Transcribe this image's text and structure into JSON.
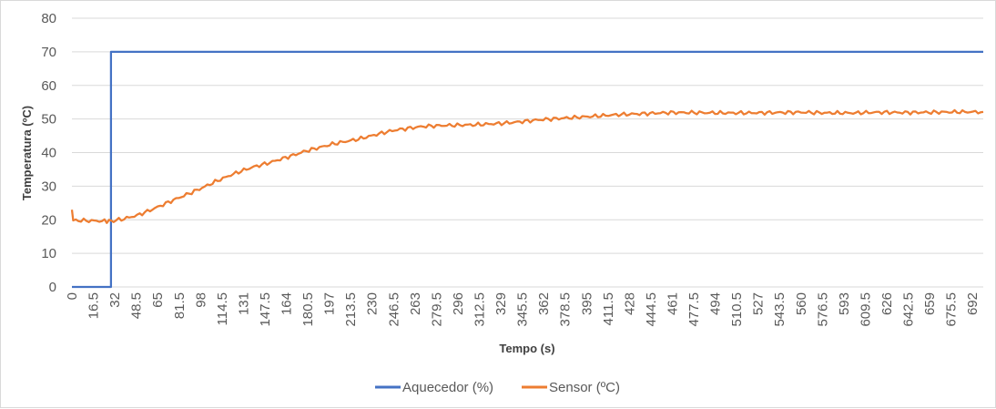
{
  "chart_data": {
    "type": "line",
    "xlabel": "Tempo (s)",
    "ylabel": "Temperatura (ºC)",
    "ylim": [
      0,
      80
    ],
    "yticks": [
      0,
      10,
      20,
      30,
      40,
      50,
      60,
      70,
      80
    ],
    "xlim": [
      0,
      700
    ],
    "xticks": [
      "0",
      "16.5",
      "32",
      "48.5",
      "65",
      "81.5",
      "98",
      "114.5",
      "131",
      "147.5",
      "164",
      "180.5",
      "197",
      "213.5",
      "230",
      "246.5",
      "263",
      "279.5",
      "296",
      "312.5",
      "329",
      "345.5",
      "362",
      "378.5",
      "395",
      "411.5",
      "428",
      "444.5",
      "461",
      "477.5",
      "494",
      "510.5",
      "527",
      "543.5",
      "560",
      "576.5",
      "593",
      "609.5",
      "626",
      "642.5",
      "659",
      "675.5",
      "692"
    ],
    "grid": true,
    "legend_position": "bottom",
    "series": [
      {
        "name": "Aquecedor (%)",
        "color": "#4472c4",
        "x": [
          0,
          30,
          30,
          700
        ],
        "y": [
          0,
          0,
          70,
          70
        ]
      },
      {
        "name": "Sensor (ºC)",
        "color": "#ed7d31",
        "x": [
          0,
          1,
          5,
          15,
          25,
          32,
          40,
          50,
          60,
          70,
          80,
          90,
          100,
          110,
          120,
          130,
          140,
          150,
          160,
          170,
          180,
          190,
          200,
          210,
          220,
          230,
          240,
          250,
          260,
          270,
          280,
          290,
          300,
          310,
          320,
          330,
          340,
          350,
          360,
          380,
          400,
          420,
          440,
          460,
          480,
          500,
          520,
          540,
          560,
          580,
          600,
          620,
          640,
          660,
          680,
          700
        ],
        "y": [
          23,
          19.8,
          19.8,
          19.7,
          19.6,
          19.7,
          20.3,
          21.3,
          22.8,
          24.5,
          26.2,
          27.8,
          29.5,
          31.3,
          33.0,
          34.5,
          35.8,
          36.8,
          38.0,
          39.2,
          40.5,
          41.5,
          42.5,
          43.3,
          44.0,
          45.0,
          46.0,
          46.8,
          47.3,
          47.8,
          48.0,
          48.1,
          48.2,
          48.3,
          48.5,
          48.7,
          49.0,
          49.4,
          49.8,
          50.3,
          50.8,
          51.3,
          51.6,
          51.9,
          51.9,
          51.8,
          51.8,
          51.9,
          52.0,
          51.8,
          51.8,
          52.0,
          51.9,
          52.0,
          52.1,
          52.1
        ]
      }
    ]
  }
}
